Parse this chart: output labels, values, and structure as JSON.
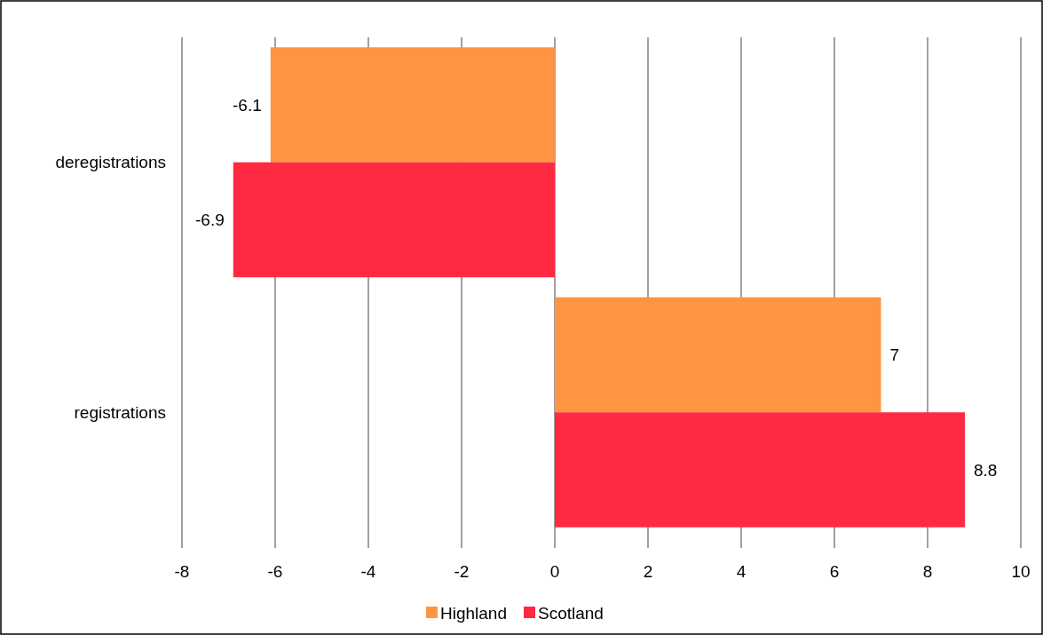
{
  "chart_data": {
    "type": "bar",
    "orientation": "horizontal",
    "categories": [
      "deregistrations",
      "registrations"
    ],
    "series": [
      {
        "name": "Highland",
        "color": "#ff9442",
        "values": [
          -6.1,
          7
        ]
      },
      {
        "name": "Scotland",
        "color": "#ff2a42",
        "values": [
          -6.9,
          8.8
        ]
      }
    ],
    "xlim": [
      -8,
      10
    ],
    "xticks": [
      -8,
      -6,
      -4,
      -2,
      0,
      2,
      4,
      6,
      8,
      10
    ],
    "grid": "x",
    "data_labels": true,
    "legend": "bottom"
  }
}
